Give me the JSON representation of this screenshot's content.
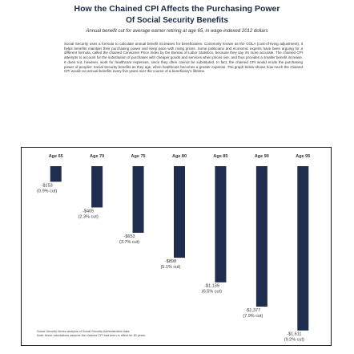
{
  "header": {
    "title": "How the Chained CPI Affects the Purchasing Power",
    "subtitle": "Of Social Security Benefits",
    "caption": "Annual benefit cut for average earner retiring at age 65, in wage-indexed 2012 dollars"
  },
  "description": "Social Security uses a formula to calculate annual benefit increases for beneficiaries. Commonly known as the COLA (cost-of-living adjustment), it helps benefits maintain their purchasing power and keep pace with rising prices. Some politicians and economic experts have been arguing for a different formula, called the chained Consumer Price Index by the Bureau of Labor Statistics, because they say it's more accurate. The chained CPI attempts to account for the substitution of purchases with cheaper goods and services when prices rise, and thus provides a smaller benefit increase. It does not, however, work for healthcare expenses, since they often cannot be substituted. In fact, the chained CPI would erode the purchasing power of peoples' Social Security benefits as they age, when healthcare becomes a greater expense. The graph below shows how much the chained CPI would cut annual benefits every five years over the course of a beneficiary's lifetime.",
  "footnote": {
    "line1": "Social Security Works analysis of Social Security Administration data.",
    "line2": "Note: these calculations assume the chained CPI had been in effect for 30 years."
  },
  "chart_data": {
    "type": "bar",
    "categories": [
      "Age 65",
      "Age 70",
      "Age 75",
      "Age 80",
      "Age 85",
      "Age 90",
      "Age 95"
    ],
    "values": [
      -153,
      -405,
      -653,
      -898,
      -1139,
      -1377,
      -1611
    ],
    "labels": [
      "-$153",
      "-$405",
      "-$653",
      "-$898",
      "-$1,139",
      "-$1,377",
      "-$1,611"
    ],
    "pct_labels": [
      "(0.9% cut)",
      "(2.3% cut)",
      "(3.7% cut)",
      "(5.1% cut)",
      "(6.5% cut)",
      "(7.9% cut)",
      "(9.2% cut)"
    ],
    "ylim": [
      -1700,
      0
    ],
    "bar_color": "#1f2d4f",
    "grid": false
  }
}
